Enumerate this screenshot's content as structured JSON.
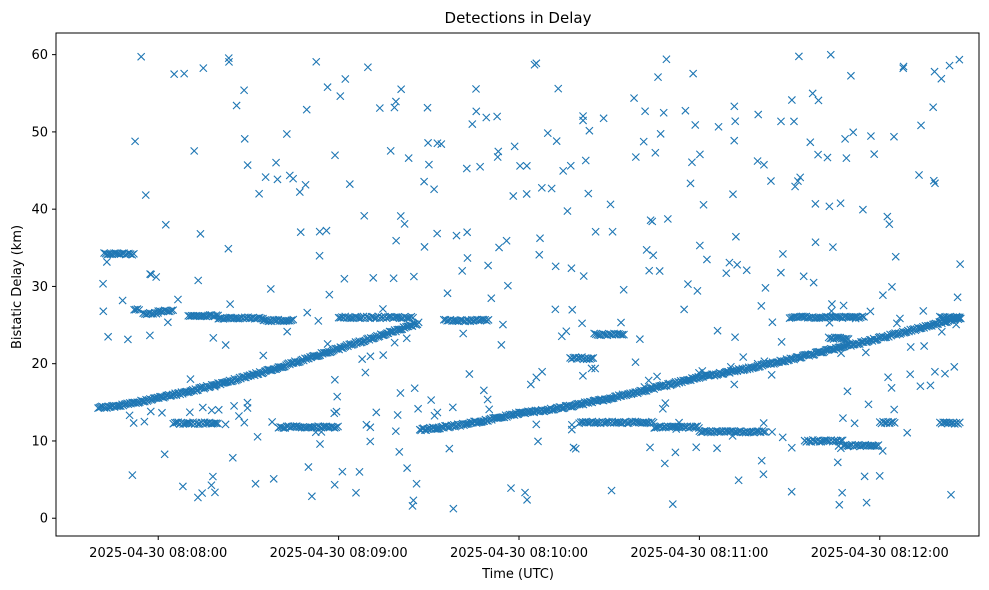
{
  "chart_data": {
    "type": "scatter",
    "title": "Detections in Delay",
    "xlabel": "Time (UTC)",
    "ylabel": "Bistatic Delay (km)",
    "x_unit": "seconds",
    "xlim": [
      "2025-04-30 08:07:26",
      "2025-04-30 08:12:33"
    ],
    "ylim": [
      -2.3,
      62.8
    ],
    "x_ticks": [
      {
        "value": "2025-04-30 08:08:00",
        "label": "2025-04-30 08:08:00"
      },
      {
        "value": "2025-04-30 08:09:00",
        "label": "2025-04-30 08:09:00"
      },
      {
        "value": "2025-04-30 08:10:00",
        "label": "2025-04-30 08:10:00"
      },
      {
        "value": "2025-04-30 08:11:00",
        "label": "2025-04-30 08:11:00"
      },
      {
        "value": "2025-04-30 08:12:00",
        "label": "2025-04-30 08:12:00"
      }
    ],
    "y_ticks": [
      0,
      10,
      20,
      30,
      40,
      50,
      60
    ],
    "marker": "x",
    "color": "#1f77b4",
    "grid": false,
    "legend": "none",
    "time_start": "2025-04-30 08:07:40",
    "time_end": "2025-04-30 08:12:27",
    "tracks": [
      {
        "start": "2025-04-30 08:07:40",
        "end": "2025-04-30 08:08:40",
        "y_start": 14.3,
        "y_end": 19.5,
        "curve": 1.3
      },
      {
        "start": "2025-04-30 08:08:40",
        "end": "2025-04-30 08:09:27",
        "y_start": 19.5,
        "y_end": 25.3,
        "curve": 1.0
      },
      {
        "start": "2025-04-30 08:09:27",
        "end": "2025-04-30 08:10:00",
        "y_start": 11.5,
        "y_end": 13.6,
        "curve": 1.4
      },
      {
        "start": "2025-04-30 08:10:00",
        "end": "2025-04-30 08:11:00",
        "y_start": 13.6,
        "y_end": 18.3,
        "curve": 1.3
      },
      {
        "start": "2025-04-30 08:11:00",
        "end": "2025-04-30 08:12:27",
        "y_start": 18.3,
        "y_end": 26.0,
        "curve": 1.15
      }
    ],
    "plateaus": [
      {
        "start": "2025-04-30 08:07:42",
        "end": "2025-04-30 08:07:52",
        "y": 34.2
      },
      {
        "start": "2025-04-30 08:07:52",
        "end": "2025-04-30 08:07:54",
        "y": 27.0
      },
      {
        "start": "2025-04-30 08:07:55",
        "end": "2025-04-30 08:08:00",
        "y": 26.5
      },
      {
        "start": "2025-04-30 08:08:00",
        "end": "2025-04-30 08:08:05",
        "y": 26.8
      },
      {
        "start": "2025-04-30 08:08:10",
        "end": "2025-04-30 08:08:20",
        "y": 26.2
      },
      {
        "start": "2025-04-30 08:08:20",
        "end": "2025-04-30 08:08:35",
        "y": 25.9
      },
      {
        "start": "2025-04-30 08:08:35",
        "end": "2025-04-30 08:08:45",
        "y": 25.6
      },
      {
        "start": "2025-04-30 08:08:05",
        "end": "2025-04-30 08:08:20",
        "y": 12.3
      },
      {
        "start": "2025-04-30 08:08:40",
        "end": "2025-04-30 08:09:00",
        "y": 11.8
      },
      {
        "start": "2025-04-30 08:09:00",
        "end": "2025-04-30 08:09:25",
        "y": 26.0
      },
      {
        "start": "2025-04-30 08:09:35",
        "end": "2025-04-30 08:09:50",
        "y": 25.6
      },
      {
        "start": "2025-04-30 08:10:17",
        "end": "2025-04-30 08:10:25",
        "y": 20.7
      },
      {
        "start": "2025-04-30 08:10:25",
        "end": "2025-04-30 08:10:35",
        "y": 23.8
      },
      {
        "start": "2025-04-30 08:10:20",
        "end": "2025-04-30 08:10:45",
        "y": 12.4
      },
      {
        "start": "2025-04-30 08:10:45",
        "end": "2025-04-30 08:11:00",
        "y": 11.8
      },
      {
        "start": "2025-04-30 08:11:00",
        "end": "2025-04-30 08:11:22",
        "y": 11.2
      },
      {
        "start": "2025-04-30 08:11:30",
        "end": "2025-04-30 08:11:55",
        "y": 26.0
      },
      {
        "start": "2025-04-30 08:11:35",
        "end": "2025-04-30 08:11:48",
        "y": 10.0
      },
      {
        "start": "2025-04-30 08:11:48",
        "end": "2025-04-30 08:12:00",
        "y": 9.4
      },
      {
        "start": "2025-04-30 08:11:43",
        "end": "2025-04-30 08:11:50",
        "y": 23.3
      },
      {
        "start": "2025-04-30 08:12:20",
        "end": "2025-04-30 08:12:27",
        "y": 26.0
      },
      {
        "start": "2025-04-30 08:12:00",
        "end": "2025-04-30 08:12:05",
        "y": 12.4
      },
      {
        "start": "2025-04-30 08:12:20",
        "end": "2025-04-30 08:12:27",
        "y": 12.3
      }
    ],
    "scatter_count": 400
  }
}
